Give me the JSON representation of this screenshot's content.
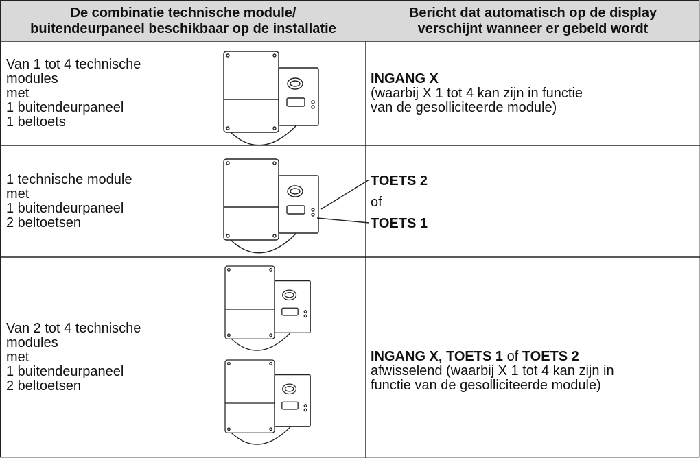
{
  "table": {
    "header": [
      [
        "De combinatie technische module/",
        "buitendeurpaneel beschikbaar op de installatie"
      ],
      [
        "Bericht dat automatisch op de display",
        "verschijnt wanneer er gebeld wordt"
      ]
    ],
    "rows": [
      {
        "left": [
          "Van 1 tot 4 technische",
          "modules",
          "met",
          "1 buitendeurpaneel",
          "1 beltoets"
        ],
        "right": [
          [
            {
              "text": "INGANG X",
              "bold": true
            }
          ],
          [
            {
              "text": "(waarbij X 1 tot 4 kan zijn in functie",
              "bold": false
            }
          ],
          [
            {
              "text": "van de gesolliciteerde module)",
              "bold": false
            }
          ]
        ]
      },
      {
        "left": [
          "1 technische module",
          "met",
          "1 buitendeurpaneel",
          "2 beltoetsen"
        ],
        "right": [
          [
            {
              "text": "TOETS 2",
              "bold": true
            }
          ],
          [
            {
              "text": "of",
              "bold": false
            }
          ],
          [
            {
              "text": "TOETS 1",
              "bold": true
            }
          ]
        ]
      },
      {
        "left": [
          "Van 2 tot 4 technische",
          "modules",
          "met",
          "1 buitendeurpaneel",
          "2 beltoetsen"
        ],
        "right": [
          [
            {
              "text": "INGANG X, TOETS 1",
              "bold": true
            },
            {
              "text": "of",
              "bold": false
            },
            {
              "text": "TOETS 2",
              "bold": true
            }
          ],
          [
            {
              "text": "afwisselend (waarbij X 1 tot 4 kan zijn in",
              "bold": false
            }
          ],
          [
            {
              "text": "functie van de gesolliciteerde module)",
              "bold": false
            }
          ]
        ]
      }
    ]
  }
}
